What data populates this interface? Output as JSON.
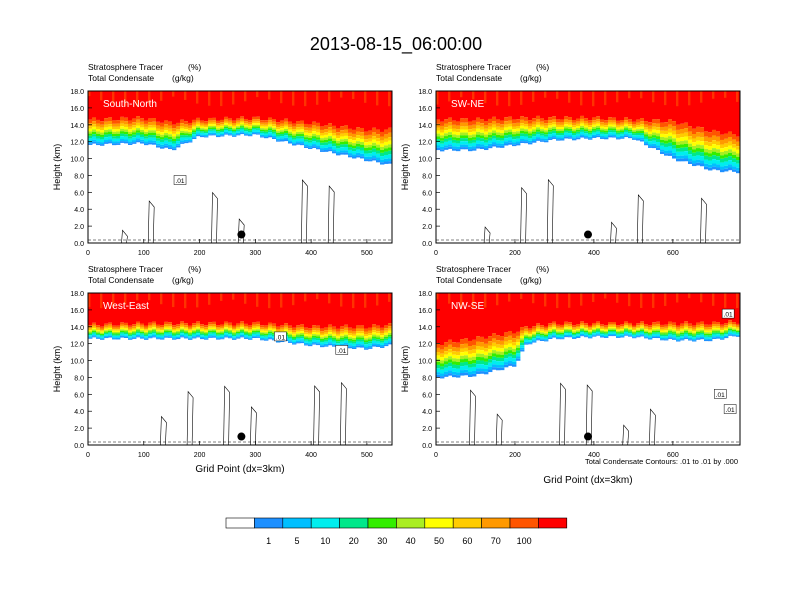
{
  "title": "2013-08-15_06:00:00",
  "colors": {
    "contour": "#000000",
    "scale": [
      "#ffffff",
      "#1e90ff",
      "#00bfff",
      "#00eeee",
      "#00e88a",
      "#33ee00",
      "#aaee22",
      "#ffff00",
      "#ffcc00",
      "#ff9900",
      "#ff5500",
      "#ff0000"
    ]
  },
  "colorbar": {
    "labels": [
      "1",
      "5",
      "10",
      "20",
      "30",
      "40",
      "50",
      "60",
      "70",
      "100"
    ]
  },
  "footnote": "Total Condensate Contours: .01 to .01 by .000",
  "contour_label": ".01",
  "point_marker": "black-dot-marker",
  "chart_data": [
    {
      "type": "heatmap",
      "title": "South-North",
      "left_string_1": "Stratosphere Tracer",
      "right_string_1": "(%)",
      "left_string_2": "Total Condensate",
      "right_string_2": "(g/kg)",
      "xlabel": "",
      "ylabel": "Height (km)",
      "xlim": [
        0,
        545
      ],
      "ylim": [
        0,
        18
      ],
      "xticks": [
        "0",
        "100",
        "200",
        "300",
        "400",
        "500"
      ],
      "yticks": [
        "0.0",
        "2.0",
        "4.0",
        "6.0",
        "8.0",
        "10.0",
        "12.0",
        "14.0",
        "16.0",
        "18.0"
      ],
      "tracer_band": {
        "x": [
          0,
          100,
          150,
          200,
          300,
          400,
          500,
          545
        ],
        "base_km": [
          11.6,
          11.8,
          11.0,
          12.6,
          12.8,
          11.2,
          9.8,
          9.2
        ],
        "top_km": [
          14.6,
          14.8,
          14.2,
          14.6,
          14.8,
          14.2,
          13.4,
          13.4
        ]
      },
      "marker": {
        "x": 275,
        "y_km": 1.0
      },
      "contour_labels": [
        {
          "text": ".01",
          "x": 165,
          "y_km": 7.4
        }
      ]
    },
    {
      "type": "heatmap",
      "title": "SW-NE",
      "left_string_1": "Stratosphere Tracer",
      "right_string_1": "(%)",
      "left_string_2": "Total Condensate",
      "right_string_2": "(g/kg)",
      "xlabel": "",
      "ylabel": "Height (km)",
      "xlim": [
        0,
        770
      ],
      "ylim": [
        0,
        18
      ],
      "xticks": [
        "0",
        "200",
        "400",
        "600"
      ],
      "yticks": [
        "0.0",
        "2.0",
        "4.0",
        "6.0",
        "8.0",
        "10.0",
        "12.0",
        "14.0",
        "16.0",
        "18.0"
      ],
      "tracer_band": {
        "x": [
          0,
          100,
          200,
          300,
          400,
          500,
          600,
          700,
          770
        ],
        "base_km": [
          11.0,
          11.0,
          11.6,
          12.2,
          12.4,
          12.4,
          10.0,
          8.6,
          8.4
        ],
        "top_km": [
          14.6,
          14.6,
          14.8,
          14.8,
          14.8,
          14.6,
          14.4,
          13.2,
          12.8
        ]
      },
      "marker": {
        "x": 385,
        "y_km": 1.0
      },
      "contour_labels": []
    },
    {
      "type": "heatmap",
      "title": "West-East",
      "left_string_1": "Stratosphere Tracer",
      "right_string_1": "(%)",
      "left_string_2": "Total Condensate",
      "right_string_2": "(g/kg)",
      "xlabel": "Grid Point (dx=3km)",
      "ylabel": "Height (km)",
      "xlim": [
        0,
        545
      ],
      "ylim": [
        0,
        18
      ],
      "xticks": [
        "0",
        "100",
        "200",
        "300",
        "400",
        "500"
      ],
      "yticks": [
        "0.0",
        "2.0",
        "4.0",
        "6.0",
        "8.0",
        "10.0",
        "12.0",
        "14.0",
        "16.0",
        "18.0"
      ],
      "tracer_band": {
        "x": [
          0,
          100,
          200,
          300,
          400,
          500,
          545
        ],
        "base_km": [
          12.6,
          12.6,
          12.6,
          12.6,
          11.8,
          11.4,
          11.8
        ],
        "top_km": [
          14.2,
          14.4,
          14.4,
          14.4,
          14.0,
          14.0,
          14.2
        ]
      },
      "marker": {
        "x": 275,
        "y_km": 1.0
      },
      "contour_labels": [
        {
          "text": ".01",
          "x": 345,
          "y_km": 12.8
        },
        {
          "text": ".01",
          "x": 455,
          "y_km": 11.2
        }
      ]
    },
    {
      "type": "heatmap",
      "title": "NW-SE",
      "left_string_1": "Stratosphere Tracer",
      "right_string_1": "(%)",
      "left_string_2": "Total Condensate",
      "right_string_2": "(g/kg)",
      "xlabel": "Grid Point (dx=3km)",
      "ylabel": "Height (km)",
      "xlim": [
        0,
        770
      ],
      "ylim": [
        0,
        18
      ],
      "xticks": [
        "0",
        "200",
        "400",
        "600"
      ],
      "yticks": [
        "0.0",
        "2.0",
        "4.0",
        "6.0",
        "8.0",
        "10.0",
        "12.0",
        "14.0",
        "16.0",
        "18.0"
      ],
      "tracer_band": {
        "x": [
          0,
          100,
          200,
          230,
          300,
          400,
          500,
          600,
          700,
          770
        ],
        "base_km": [
          8.0,
          8.2,
          9.4,
          12.0,
          12.6,
          12.8,
          12.8,
          12.4,
          12.4,
          13.0
        ],
        "top_km": [
          12.0,
          12.6,
          13.4,
          14.0,
          14.4,
          14.4,
          14.4,
          14.4,
          14.4,
          14.6
        ]
      },
      "marker": {
        "x": 385,
        "y_km": 1.0
      },
      "contour_labels": [
        {
          "text": ".01",
          "x": 740,
          "y_km": 15.5
        },
        {
          "text": ".01",
          "x": 720,
          "y_km": 6.0
        },
        {
          "text": ".01",
          "x": 745,
          "y_km": 4.2
        }
      ]
    }
  ]
}
